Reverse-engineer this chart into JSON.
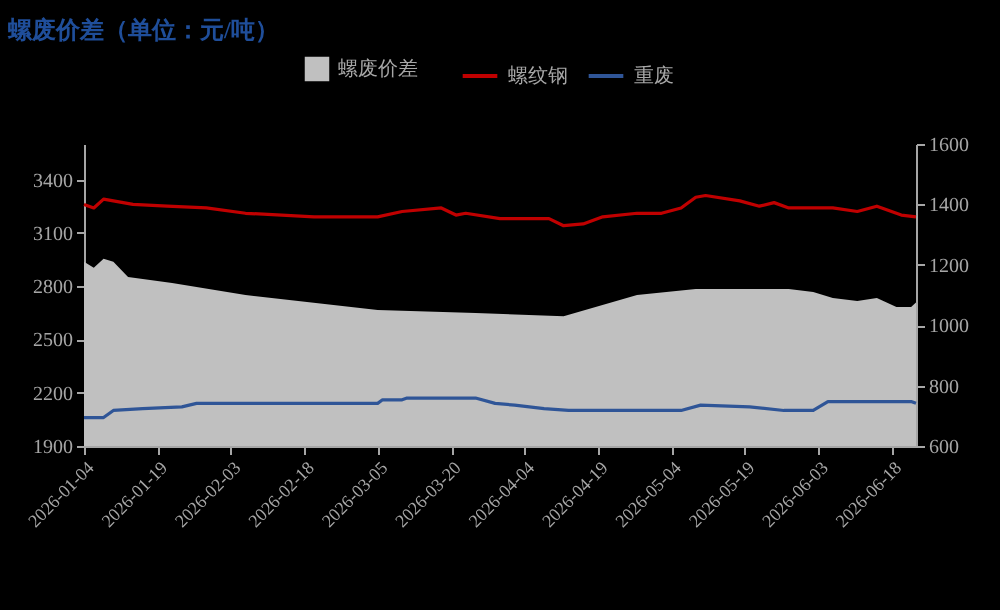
{
  "chart_data": {
    "type": "line",
    "title": "螺废价差（单位：元/吨）",
    "xlim": [
      "2026-01-04",
      "2026-06-23"
    ],
    "xticks": [
      "2026-01-04",
      "2026-01-19",
      "2026-02-03",
      "2026-02-18",
      "2026-03-05",
      "2026-03-20",
      "2026-04-04",
      "2026-04-19",
      "2026-05-04",
      "2026-05-19",
      "2026-06-03",
      "2026-06-18"
    ],
    "ylim": [
      1900,
      3600
    ],
    "yticks": [
      1900,
      2200,
      2500,
      2800,
      3100,
      3400
    ],
    "y2lim": [
      600,
      1600
    ],
    "y2ticks": [
      600,
      800,
      1000,
      1200,
      1400,
      1600
    ],
    "legend": "top",
    "grid": false,
    "series": [
      {
        "name": "螺废价差",
        "type": "area",
        "axis": "y2",
        "color": "#c0c0c0",
        "x": [
          "2026-01-04",
          "2026-01-06",
          "2026-01-08",
          "2026-01-10",
          "2026-01-13",
          "2026-01-22",
          "2026-02-06",
          "2026-03-05",
          "2026-03-25",
          "2026-04-12",
          "2026-04-27",
          "2026-05-09",
          "2026-05-22",
          "2026-05-28",
          "2026-06-02",
          "2026-06-06",
          "2026-06-11",
          "2026-06-15",
          "2026-06-17",
          "2026-06-19",
          "2026-06-22",
          "2026-06-23"
        ],
        "values": [
          1210,
          1190,
          1220,
          1210,
          1160,
          1140,
          1100,
          1050,
          1040,
          1030,
          1100,
          1120,
          1120,
          1120,
          1110,
          1090,
          1080,
          1090,
          1075,
          1060,
          1060,
          1075
        ]
      },
      {
        "name": "螺纹钢",
        "color": "#c00000",
        "x": [
          "2026-01-04",
          "2026-01-06",
          "2026-01-08",
          "2026-01-14",
          "2026-01-21",
          "2026-01-29",
          "2026-02-06",
          "2026-02-20",
          "2026-03-05",
          "2026-03-10",
          "2026-03-18",
          "2026-03-21",
          "2026-03-23",
          "2026-03-30",
          "2026-04-09",
          "2026-04-12",
          "2026-04-16",
          "2026-04-20",
          "2026-04-27",
          "2026-05-02",
          "2026-05-06",
          "2026-05-09",
          "2026-05-11",
          "2026-05-18",
          "2026-05-22",
          "2026-05-25",
          "2026-05-28",
          "2026-06-06",
          "2026-06-11",
          "2026-06-15",
          "2026-06-20",
          "2026-06-23"
        ],
        "values": [
          3260,
          3240,
          3290,
          3260,
          3250,
          3240,
          3210,
          3190,
          3190,
          3220,
          3240,
          3200,
          3210,
          3180,
          3180,
          3140,
          3150,
          3190,
          3210,
          3210,
          3240,
          3300,
          3310,
          3280,
          3250,
          3270,
          3240,
          3240,
          3220,
          3250,
          3200,
          3190
        ]
      },
      {
        "name": "重废",
        "color": "#2f5597",
        "x": [
          "2026-01-04",
          "2026-01-08",
          "2026-01-10",
          "2026-01-16",
          "2026-01-24",
          "2026-01-27",
          "2026-03-05",
          "2026-03-06",
          "2026-03-10",
          "2026-03-11",
          "2026-03-25",
          "2026-03-29",
          "2026-04-02",
          "2026-04-08",
          "2026-04-13",
          "2026-05-06",
          "2026-05-10",
          "2026-05-20",
          "2026-05-27",
          "2026-06-02",
          "2026-06-05",
          "2026-06-22",
          "2026-06-23"
        ],
        "values": [
          2060,
          2060,
          2100,
          2110,
          2120,
          2140,
          2140,
          2160,
          2160,
          2170,
          2170,
          2140,
          2130,
          2110,
          2100,
          2100,
          2130,
          2120,
          2100,
          2100,
          2150,
          2150,
          2140
        ]
      }
    ]
  }
}
